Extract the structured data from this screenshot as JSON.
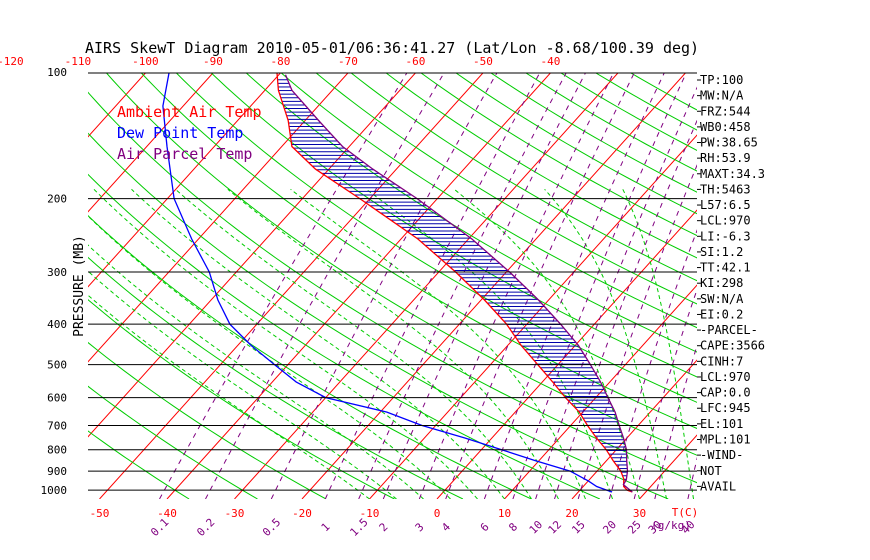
{
  "chart_data": {
    "type": "line",
    "title": "AIRS SkewT Diagram 2010-05-01/06:36:41.27 (Lat/Lon -8.68/100.39 deg)",
    "ylabel": "PRESSURE (MB)",
    "y_scale": "log",
    "ylim": [
      1050,
      100
    ],
    "y_ticks": [
      "100",
      "200",
      "300",
      "400",
      "500",
      "600",
      "700",
      "800",
      "900",
      "1000"
    ],
    "top_temp_ticks": [
      "-120",
      "-110",
      "-100",
      "-90",
      "-80",
      "-70",
      "-60",
      "-50",
      "-40"
    ],
    "bottom_temp_ticks": [
      "-50",
      "-40",
      "-30",
      "-20",
      "-10",
      "0",
      "10",
      "20",
      "30"
    ],
    "bottom_temp_unit": "T(C)",
    "mixing_ratio_ticks": [
      "0.1",
      "0.2",
      "0.5",
      "1",
      "1.5",
      "2",
      "3",
      "4",
      "6",
      "8",
      "10",
      "12",
      "15",
      "20",
      "25",
      "30",
      "40"
    ],
    "mixing_ratio_unit": "(g/kg)",
    "legend": [
      {
        "label": "Ambient Air Temp",
        "color": "#ff0000"
      },
      {
        "label": "Dew Point Temp",
        "color": "#0000ff"
      },
      {
        "label": "Air Parcel Temp",
        "color": "#800080"
      }
    ],
    "legend_position": "top-left",
    "series": [
      {
        "name": "Ambient Air Temp",
        "color": "#ff0000",
        "points": [
          [
            1010,
            28
          ],
          [
            1000,
            27
          ],
          [
            980,
            26
          ],
          [
            960,
            25.5
          ],
          [
            940,
            25
          ],
          [
            900,
            23.5
          ],
          [
            850,
            21
          ],
          [
            800,
            18.5
          ],
          [
            750,
            15.5
          ],
          [
            700,
            12.5
          ],
          [
            650,
            9.5
          ],
          [
            600,
            5.5
          ],
          [
            550,
            1.5
          ],
          [
            500,
            -3
          ],
          [
            450,
            -8
          ],
          [
            400,
            -13
          ],
          [
            350,
            -19.5
          ],
          [
            300,
            -27.5
          ],
          [
            250,
            -37.5
          ],
          [
            200,
            -51.5
          ],
          [
            170,
            -62
          ],
          [
            150,
            -68.5
          ],
          [
            130,
            -72.5
          ],
          [
            110,
            -78
          ],
          [
            100,
            -80.5
          ]
        ]
      },
      {
        "name": "Dew Point Temp",
        "color": "#0000ff",
        "points": [
          [
            1010,
            25
          ],
          [
            1000,
            24
          ],
          [
            980,
            22
          ],
          [
            950,
            20
          ],
          [
            900,
            16
          ],
          [
            850,
            9.5
          ],
          [
            800,
            3
          ],
          [
            750,
            -4
          ],
          [
            700,
            -12
          ],
          [
            650,
            -19
          ],
          [
            600,
            -30
          ],
          [
            550,
            -36.5
          ],
          [
            500,
            -42
          ],
          [
            450,
            -48
          ],
          [
            400,
            -54
          ],
          [
            350,
            -59
          ],
          [
            300,
            -64
          ],
          [
            250,
            -71
          ],
          [
            200,
            -79
          ],
          [
            150,
            -87
          ],
          [
            120,
            -93
          ],
          [
            100,
            -96.5
          ]
        ]
      },
      {
        "name": "Air Parcel Temp",
        "color": "#800080",
        "points": [
          [
            1010,
            28
          ],
          [
            970,
            25.7
          ],
          [
            945,
            25.5
          ],
          [
            900,
            24.5
          ],
          [
            850,
            23
          ],
          [
            800,
            21.5
          ],
          [
            750,
            19.5
          ],
          [
            700,
            17.2
          ],
          [
            650,
            14.8
          ],
          [
            600,
            11.8
          ],
          [
            550,
            8.6
          ],
          [
            500,
            4.8
          ],
          [
            450,
            0.5
          ],
          [
            400,
            -5
          ],
          [
            350,
            -11.5
          ],
          [
            300,
            -19.5
          ],
          [
            250,
            -29.5
          ],
          [
            200,
            -43
          ],
          [
            170,
            -53.5
          ],
          [
            150,
            -61
          ],
          [
            130,
            -68
          ],
          [
            110,
            -76
          ],
          [
            101,
            -79
          ]
        ]
      }
    ],
    "indices": [
      "TP:100",
      "MW:N/A",
      "FRZ:544",
      "WB0:458",
      "PW:38.65",
      "RH:53.9",
      "MAXT:34.3",
      "TH:5463",
      "L57:6.5",
      "LCL:970",
      "LI:-6.3",
      "SI:1.2",
      "TT:42.1",
      "KI:298",
      "SW:N/A",
      "EI:0.2",
      "-PARCEL-",
      "CAPE:3566",
      "CINH:7",
      "LCL:970",
      "CAP:0.0",
      "LFC:945",
      "EL:101",
      "MPL:101",
      "-WIND-",
      "NOT",
      "AVAIL"
    ],
    "colors": {
      "isotherm": "#ff0000",
      "dry_adiabat": "#00cc00",
      "moist_adiabat": "#00cc00",
      "mixing_ratio": "#800080",
      "isobar": "#000000",
      "hatch": "#0000aa"
    }
  }
}
